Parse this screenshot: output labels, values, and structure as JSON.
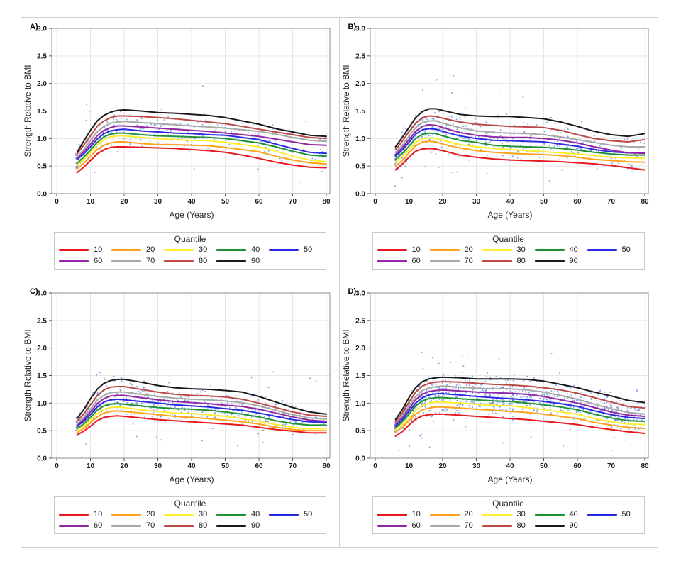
{
  "axes": {
    "x_label": "Age (Years)",
    "y_label": "Strength Relative to BMI",
    "x_ticks": [
      0,
      10,
      20,
      30,
      40,
      50,
      60,
      70,
      80
    ],
    "y_tick_labels": [
      "0.0",
      "0.5",
      "1.0",
      "1.5",
      "2.0",
      "2.5",
      "3.0"
    ],
    "x_range": [
      0,
      80
    ],
    "y_range": [
      0,
      3
    ]
  },
  "legend": {
    "title": "Quantile",
    "entries": [
      {
        "label": "10",
        "color": "#e8171e"
      },
      {
        "label": "20",
        "color": "#ffa31a"
      },
      {
        "label": "30",
        "color": "#fdee30"
      },
      {
        "label": "40",
        "color": "#1f9234"
      },
      {
        "label": "50",
        "color": "#2a2ae0"
      },
      {
        "label": "60",
        "color": "#9326a4"
      },
      {
        "label": "70",
        "color": "#a8a8a8"
      },
      {
        "label": "80",
        "color": "#bb4a47"
      },
      {
        "label": "90",
        "color": "#1a1a1a"
      }
    ]
  },
  "panels": [
    {
      "label": "A)"
    },
    {
      "label": "B)"
    },
    {
      "label": "C)"
    },
    {
      "label": "D)"
    }
  ],
  "chart_data": [
    {
      "panel": "A",
      "type": "line",
      "title": "",
      "xlabel": "Age (Years)",
      "ylabel": "Strength Relative to BMI",
      "xlim": [
        0,
        80
      ],
      "ylim": [
        0,
        3
      ],
      "grid": true,
      "legend_position": "bottom",
      "x": [
        6,
        8,
        10,
        12,
        14,
        16,
        18,
        20,
        25,
        30,
        35,
        40,
        45,
        50,
        55,
        60,
        65,
        70,
        75,
        80
      ],
      "series": [
        {
          "name": "10",
          "values": [
            0.38,
            0.48,
            0.6,
            0.72,
            0.8,
            0.84,
            0.85,
            0.85,
            0.84,
            0.83,
            0.82,
            0.8,
            0.78,
            0.75,
            0.7,
            0.64,
            0.57,
            0.52,
            0.48,
            0.47
          ]
        },
        {
          "name": "20",
          "values": [
            0.45,
            0.55,
            0.68,
            0.8,
            0.88,
            0.92,
            0.94,
            0.94,
            0.91,
            0.89,
            0.89,
            0.88,
            0.87,
            0.84,
            0.8,
            0.76,
            0.68,
            0.61,
            0.56,
            0.54
          ]
        },
        {
          "name": "30",
          "values": [
            0.52,
            0.62,
            0.75,
            0.88,
            0.98,
            1.03,
            1.05,
            1.05,
            1.02,
            1.0,
            0.98,
            0.97,
            0.96,
            0.93,
            0.89,
            0.85,
            0.77,
            0.68,
            0.61,
            0.58
          ]
        },
        {
          "name": "40",
          "values": [
            0.55,
            0.66,
            0.79,
            0.93,
            1.03,
            1.08,
            1.1,
            1.1,
            1.07,
            1.05,
            1.04,
            1.03,
            1.02,
            1.0,
            0.96,
            0.92,
            0.85,
            0.77,
            0.7,
            0.68
          ]
        },
        {
          "name": "50",
          "values": [
            0.62,
            0.72,
            0.85,
            0.99,
            1.09,
            1.14,
            1.16,
            1.17,
            1.14,
            1.12,
            1.1,
            1.09,
            1.07,
            1.06,
            1.02,
            0.98,
            0.9,
            0.82,
            0.75,
            0.73
          ]
        },
        {
          "name": "60",
          "values": [
            0.64,
            0.76,
            0.9,
            1.05,
            1.15,
            1.2,
            1.23,
            1.23,
            1.21,
            1.19,
            1.17,
            1.15,
            1.13,
            1.1,
            1.07,
            1.04,
            0.99,
            0.94,
            0.89,
            0.88
          ]
        },
        {
          "name": "70",
          "values": [
            0.66,
            0.8,
            0.97,
            1.12,
            1.22,
            1.28,
            1.3,
            1.31,
            1.29,
            1.27,
            1.25,
            1.23,
            1.21,
            1.19,
            1.16,
            1.13,
            1.08,
            1.02,
            0.97,
            0.95
          ]
        },
        {
          "name": "80",
          "values": [
            0.72,
            0.88,
            1.05,
            1.22,
            1.32,
            1.38,
            1.41,
            1.41,
            1.4,
            1.38,
            1.36,
            1.33,
            1.3,
            1.27,
            1.22,
            1.17,
            1.12,
            1.07,
            1.02,
            1.0
          ]
        },
        {
          "name": "90",
          "values": [
            0.75,
            0.95,
            1.15,
            1.32,
            1.42,
            1.48,
            1.51,
            1.52,
            1.5,
            1.47,
            1.46,
            1.44,
            1.42,
            1.38,
            1.32,
            1.26,
            1.18,
            1.12,
            1.06,
            1.04
          ]
        }
      ],
      "scatter": {
        "marker": "dot",
        "color": "#5580d8",
        "approx_count": 270,
        "seed": 7,
        "age_bias": 1.7
      }
    },
    {
      "panel": "B",
      "type": "line",
      "title": "",
      "xlabel": "Age (Years)",
      "ylabel": "Strength Relative to BMI",
      "xlim": [
        0,
        80
      ],
      "ylim": [
        0,
        3
      ],
      "grid": true,
      "legend_position": "bottom",
      "x": [
        6,
        8,
        10,
        12,
        14,
        16,
        18,
        20,
        25,
        30,
        35,
        40,
        45,
        50,
        55,
        60,
        65,
        70,
        75,
        80
      ],
      "series": [
        {
          "name": "10",
          "values": [
            0.43,
            0.53,
            0.66,
            0.77,
            0.81,
            0.82,
            0.81,
            0.78,
            0.7,
            0.66,
            0.63,
            0.61,
            0.6,
            0.59,
            0.58,
            0.56,
            0.54,
            0.51,
            0.47,
            0.43
          ]
        },
        {
          "name": "20",
          "values": [
            0.5,
            0.6,
            0.74,
            0.87,
            0.94,
            0.95,
            0.94,
            0.9,
            0.83,
            0.78,
            0.75,
            0.73,
            0.72,
            0.71,
            0.69,
            0.66,
            0.62,
            0.6,
            0.58,
            0.57
          ]
        },
        {
          "name": "30",
          "values": [
            0.57,
            0.67,
            0.8,
            0.93,
            1.0,
            1.01,
            1.0,
            0.97,
            0.89,
            0.85,
            0.82,
            0.8,
            0.78,
            0.76,
            0.74,
            0.72,
            0.69,
            0.66,
            0.65,
            0.64
          ]
        },
        {
          "name": "40",
          "values": [
            0.62,
            0.73,
            0.86,
            1.0,
            1.08,
            1.1,
            1.09,
            1.05,
            0.97,
            0.93,
            0.88,
            0.86,
            0.85,
            0.84,
            0.82,
            0.79,
            0.75,
            0.72,
            0.7,
            0.7
          ]
        },
        {
          "name": "50",
          "values": [
            0.68,
            0.79,
            0.93,
            1.08,
            1.16,
            1.18,
            1.17,
            1.13,
            1.05,
            1.0,
            0.97,
            0.96,
            0.95,
            0.94,
            0.9,
            0.86,
            0.8,
            0.76,
            0.74,
            0.74
          ]
        },
        {
          "name": "60",
          "values": [
            0.71,
            0.83,
            0.98,
            1.13,
            1.22,
            1.25,
            1.24,
            1.2,
            1.11,
            1.06,
            1.03,
            1.02,
            1.02,
            1.0,
            0.97,
            0.92,
            0.85,
            0.79,
            0.74,
            0.73
          ]
        },
        {
          "name": "70",
          "values": [
            0.75,
            0.88,
            1.04,
            1.2,
            1.29,
            1.32,
            1.32,
            1.28,
            1.2,
            1.14,
            1.11,
            1.1,
            1.09,
            1.07,
            1.03,
            0.98,
            0.93,
            0.88,
            0.85,
            0.85
          ]
        },
        {
          "name": "80",
          "values": [
            0.8,
            0.95,
            1.12,
            1.28,
            1.38,
            1.41,
            1.4,
            1.37,
            1.3,
            1.26,
            1.24,
            1.22,
            1.21,
            1.2,
            1.15,
            1.07,
            1.0,
            0.96,
            0.94,
            0.98
          ]
        },
        {
          "name": "90",
          "values": [
            0.85,
            1.02,
            1.2,
            1.38,
            1.49,
            1.54,
            1.54,
            1.51,
            1.44,
            1.41,
            1.4,
            1.4,
            1.38,
            1.36,
            1.3,
            1.22,
            1.13,
            1.07,
            1.04,
            1.09
          ]
        }
      ],
      "scatter": {
        "marker": "dot",
        "color": "#5580d8",
        "approx_count": 520,
        "seed": 13,
        "age_bias": 1.5
      }
    },
    {
      "panel": "C",
      "type": "line",
      "title": "",
      "xlabel": "Age (Years)",
      "ylabel": "Strength Relative to BMI",
      "xlim": [
        0,
        80
      ],
      "ylim": [
        0,
        3
      ],
      "grid": true,
      "legend_position": "bottom",
      "x": [
        6,
        8,
        10,
        12,
        14,
        16,
        18,
        20,
        25,
        30,
        35,
        40,
        45,
        50,
        55,
        60,
        65,
        70,
        75,
        80
      ],
      "series": [
        {
          "name": "10",
          "values": [
            0.42,
            0.49,
            0.58,
            0.68,
            0.74,
            0.76,
            0.77,
            0.76,
            0.73,
            0.7,
            0.68,
            0.66,
            0.64,
            0.62,
            0.6,
            0.56,
            0.52,
            0.49,
            0.46,
            0.46
          ]
        },
        {
          "name": "20",
          "values": [
            0.46,
            0.54,
            0.64,
            0.75,
            0.82,
            0.85,
            0.86,
            0.85,
            0.82,
            0.79,
            0.76,
            0.74,
            0.72,
            0.69,
            0.66,
            0.62,
            0.56,
            0.52,
            0.5,
            0.5
          ]
        },
        {
          "name": "30",
          "values": [
            0.5,
            0.58,
            0.69,
            0.81,
            0.89,
            0.92,
            0.93,
            0.92,
            0.88,
            0.85,
            0.82,
            0.81,
            0.79,
            0.76,
            0.72,
            0.67,
            0.61,
            0.56,
            0.53,
            0.54
          ]
        },
        {
          "name": "40",
          "values": [
            0.54,
            0.62,
            0.74,
            0.87,
            0.95,
            0.98,
            0.99,
            0.98,
            0.95,
            0.92,
            0.9,
            0.89,
            0.87,
            0.84,
            0.8,
            0.75,
            0.68,
            0.63,
            0.6,
            0.6
          ]
        },
        {
          "name": "50",
          "values": [
            0.58,
            0.67,
            0.79,
            0.93,
            1.02,
            1.06,
            1.07,
            1.06,
            1.03,
            1.0,
            0.97,
            0.95,
            0.93,
            0.9,
            0.87,
            0.82,
            0.76,
            0.7,
            0.66,
            0.65
          ]
        },
        {
          "name": "60",
          "values": [
            0.6,
            0.7,
            0.84,
            0.99,
            1.08,
            1.13,
            1.14,
            1.14,
            1.1,
            1.06,
            1.03,
            1.01,
            0.99,
            0.96,
            0.94,
            0.89,
            0.82,
            0.75,
            0.69,
            0.67
          ]
        },
        {
          "name": "70",
          "values": [
            0.62,
            0.74,
            0.89,
            1.05,
            1.14,
            1.19,
            1.2,
            1.2,
            1.16,
            1.12,
            1.09,
            1.07,
            1.06,
            1.04,
            1.01,
            0.95,
            0.87,
            0.79,
            0.73,
            0.71
          ]
        },
        {
          "name": "80",
          "values": [
            0.67,
            0.8,
            0.97,
            1.13,
            1.24,
            1.29,
            1.3,
            1.3,
            1.25,
            1.2,
            1.16,
            1.14,
            1.13,
            1.11,
            1.07,
            1.0,
            0.92,
            0.84,
            0.78,
            0.76
          ]
        },
        {
          "name": "90",
          "values": [
            0.72,
            0.88,
            1.08,
            1.25,
            1.36,
            1.41,
            1.43,
            1.43,
            1.38,
            1.32,
            1.28,
            1.26,
            1.25,
            1.23,
            1.2,
            1.12,
            1.02,
            0.92,
            0.84,
            0.8
          ]
        }
      ],
      "scatter": {
        "marker": "dot",
        "color": "#5580d8",
        "approx_count": 560,
        "seed": 21,
        "age_bias": 1.45
      }
    },
    {
      "panel": "D",
      "type": "line",
      "title": "",
      "xlabel": "Age (Years)",
      "ylabel": "Strength Relative to BMI",
      "xlim": [
        0,
        80
      ],
      "ylim": [
        0,
        3
      ],
      "grid": true,
      "legend_position": "bottom",
      "x": [
        6,
        8,
        10,
        12,
        14,
        16,
        18,
        20,
        25,
        30,
        35,
        40,
        45,
        50,
        55,
        60,
        65,
        70,
        75,
        80
      ],
      "series": [
        {
          "name": "10",
          "values": [
            0.4,
            0.48,
            0.6,
            0.71,
            0.77,
            0.79,
            0.8,
            0.8,
            0.78,
            0.76,
            0.74,
            0.72,
            0.7,
            0.67,
            0.64,
            0.61,
            0.56,
            0.52,
            0.48,
            0.45
          ]
        },
        {
          "name": "20",
          "values": [
            0.47,
            0.56,
            0.68,
            0.8,
            0.88,
            0.91,
            0.93,
            0.93,
            0.91,
            0.89,
            0.87,
            0.85,
            0.83,
            0.8,
            0.76,
            0.72,
            0.65,
            0.6,
            0.56,
            0.54
          ]
        },
        {
          "name": "30",
          "values": [
            0.52,
            0.61,
            0.73,
            0.87,
            0.96,
            1.0,
            1.02,
            1.02,
            1.0,
            0.98,
            0.96,
            0.95,
            0.92,
            0.88,
            0.84,
            0.8,
            0.72,
            0.66,
            0.62,
            0.61
          ]
        },
        {
          "name": "40",
          "values": [
            0.55,
            0.66,
            0.8,
            0.95,
            1.04,
            1.08,
            1.1,
            1.1,
            1.08,
            1.06,
            1.04,
            1.03,
            1.0,
            0.97,
            0.93,
            0.88,
            0.8,
            0.73,
            0.68,
            0.67
          ]
        },
        {
          "name": "50",
          "values": [
            0.58,
            0.7,
            0.85,
            1.0,
            1.1,
            1.15,
            1.17,
            1.17,
            1.15,
            1.12,
            1.1,
            1.08,
            1.06,
            1.03,
            0.99,
            0.94,
            0.86,
            0.79,
            0.74,
            0.72
          ]
        },
        {
          "name": "60",
          "values": [
            0.62,
            0.74,
            0.9,
            1.06,
            1.16,
            1.21,
            1.23,
            1.24,
            1.22,
            1.2,
            1.19,
            1.18,
            1.16,
            1.12,
            1.06,
            1.0,
            0.92,
            0.84,
            0.78,
            0.76
          ]
        },
        {
          "name": "70",
          "values": [
            0.64,
            0.77,
            0.95,
            1.12,
            1.23,
            1.28,
            1.3,
            1.31,
            1.29,
            1.27,
            1.26,
            1.26,
            1.24,
            1.2,
            1.14,
            1.07,
            0.98,
            0.9,
            0.83,
            0.8
          ]
        },
        {
          "name": "80",
          "values": [
            0.66,
            0.82,
            1.02,
            1.2,
            1.31,
            1.36,
            1.38,
            1.39,
            1.38,
            1.36,
            1.34,
            1.33,
            1.31,
            1.28,
            1.24,
            1.18,
            1.1,
            1.02,
            0.94,
            0.91
          ]
        },
        {
          "name": "90",
          "values": [
            0.7,
            0.88,
            1.1,
            1.28,
            1.39,
            1.44,
            1.46,
            1.47,
            1.46,
            1.44,
            1.44,
            1.44,
            1.43,
            1.4,
            1.34,
            1.28,
            1.2,
            1.13,
            1.05,
            1.01
          ]
        }
      ],
      "scatter": {
        "marker": "dot",
        "color": "#5580d8",
        "approx_count": 950,
        "seed": 29,
        "age_bias": 1.25
      }
    }
  ]
}
